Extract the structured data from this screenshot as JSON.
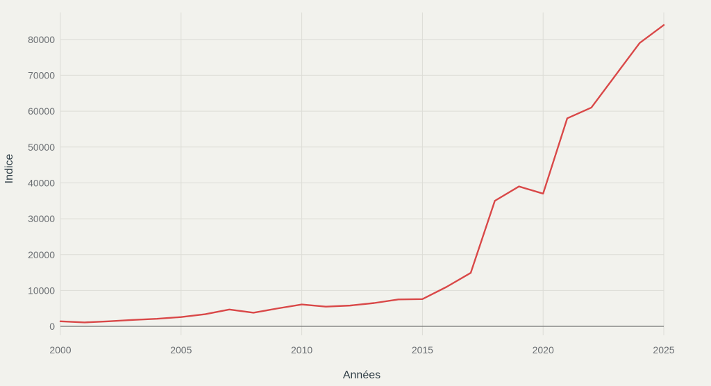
{
  "chart_data": {
    "type": "line",
    "title": "",
    "xlabel": "Années",
    "ylabel": "Indice",
    "xlim": [
      2000,
      2025
    ],
    "ylim": [
      -2500,
      87500
    ],
    "x_ticks": [
      2000,
      2005,
      2010,
      2015,
      2020,
      2025
    ],
    "y_ticks": [
      0,
      10000,
      20000,
      30000,
      40000,
      50000,
      60000,
      70000,
      80000
    ],
    "grid": true,
    "legend": "none",
    "series": [
      {
        "color": "#d94848",
        "x": [
          2000,
          2001,
          2002,
          2003,
          2004,
          2005,
          2006,
          2007,
          2008,
          2009,
          2010,
          2011,
          2012,
          2013,
          2014,
          2015,
          2016,
          2017,
          2018,
          2019,
          2020,
          2021,
          2022,
          2024,
          2025
        ],
        "y": [
          1400,
          1100,
          1400,
          1800,
          2100,
          2600,
          3400,
          4700,
          3800,
          5000,
          6100,
          5500,
          5800,
          6500,
          7500,
          7600,
          11000,
          14900,
          35000,
          39000,
          37000,
          58000,
          61000,
          79000,
          84000
        ]
      }
    ]
  }
}
